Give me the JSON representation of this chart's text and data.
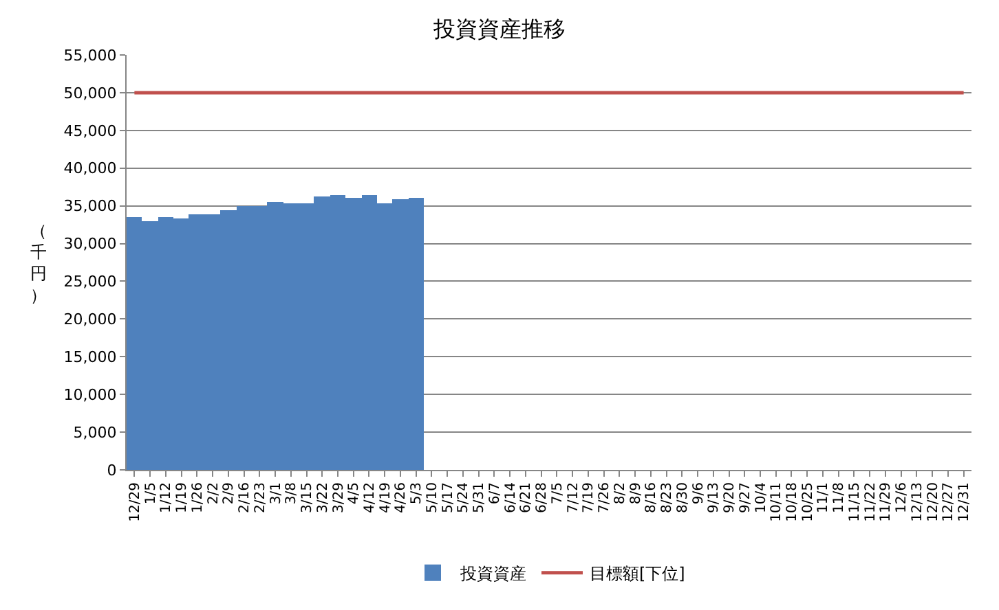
{
  "chart_data": {
    "type": "bar",
    "title": "投資資産推移",
    "ylabel": "（千円）",
    "categories": [
      "12/29",
      "1/5",
      "1/12",
      "1/19",
      "1/26",
      "2/2",
      "2/9",
      "2/16",
      "2/23",
      "3/1",
      "3/8",
      "3/15",
      "3/22",
      "3/29",
      "4/5",
      "4/12",
      "4/19",
      "4/26",
      "5/3",
      "5/10",
      "5/17",
      "5/24",
      "5/31",
      "6/7",
      "6/14",
      "6/21",
      "6/28",
      "7/5",
      "7/12",
      "7/19",
      "7/26",
      "8/2",
      "8/9",
      "8/16",
      "8/23",
      "8/30",
      "9/6",
      "9/13",
      "9/20",
      "9/27",
      "10/4",
      "10/11",
      "10/18",
      "10/25",
      "11/1",
      "11/8",
      "11/15",
      "11/22",
      "11/29",
      "12/6",
      "12/13",
      "12/20",
      "12/27",
      "12/31"
    ],
    "series": [
      {
        "name": "投資資産",
        "color": "#4f81bd",
        "values": [
          33500,
          33000,
          33500,
          33300,
          33900,
          33900,
          34500,
          35000,
          35000,
          35600,
          35400,
          35400,
          36300,
          36500,
          36000,
          36500,
          35300,
          35800,
          36000,
          null,
          null,
          null,
          null,
          null,
          null,
          null,
          null,
          null,
          null,
          null,
          null,
          null,
          null,
          null,
          null,
          null,
          null,
          null,
          null,
          null,
          null,
          null,
          null,
          null,
          null,
          null,
          null,
          null,
          null,
          null,
          null,
          null,
          null,
          null
        ]
      },
      {
        "name": "目標額[下位]",
        "type": "line",
        "color": "#c0504d",
        "values": [
          50000,
          50000,
          50000,
          50000,
          50000,
          50000,
          50000,
          50000,
          50000,
          50000,
          50000,
          50000,
          50000,
          50000,
          50000,
          50000,
          50000,
          50000,
          50000,
          50000,
          50000,
          50000,
          50000,
          50000,
          50000,
          50000,
          50000,
          50000,
          50000,
          50000,
          50000,
          50000,
          50000,
          50000,
          50000,
          50000,
          50000,
          50000,
          50000,
          50000,
          50000,
          50000,
          50000,
          50000,
          50000,
          50000,
          50000,
          50000,
          50000,
          50000,
          50000,
          50000,
          50000,
          50000
        ]
      }
    ],
    "ylim": [
      0,
      55000
    ],
    "yticks": [
      {
        "value": 0,
        "label": "0"
      },
      {
        "value": 5000,
        "label": "5,000"
      },
      {
        "value": 10000,
        "label": "10,000"
      },
      {
        "value": 15000,
        "label": "15,000"
      },
      {
        "value": 20000,
        "label": "20,000"
      },
      {
        "value": 25000,
        "label": "25,000"
      },
      {
        "value": 30000,
        "label": "30,000"
      },
      {
        "value": 35000,
        "label": "35,000"
      },
      {
        "value": 40000,
        "label": "40,000"
      },
      {
        "value": 45000,
        "label": "45,000"
      },
      {
        "value": 50000,
        "label": "50,000"
      },
      {
        "value": 55000,
        "label": "55,000"
      }
    ],
    "grid": "y",
    "legend": "bottom",
    "marker": "none",
    "line_style": "solid"
  }
}
